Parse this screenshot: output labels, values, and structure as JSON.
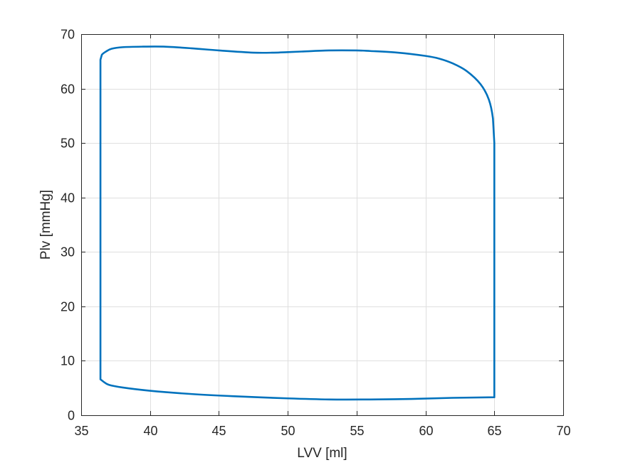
{
  "chart_data": {
    "type": "line",
    "title": "",
    "xlabel": "LVV [ml]",
    "ylabel": "Plv [mmHg]",
    "xlim": [
      35,
      70
    ],
    "ylim": [
      0,
      70
    ],
    "xticks": [
      35,
      40,
      45,
      50,
      55,
      60,
      65,
      70
    ],
    "yticks": [
      0,
      10,
      20,
      30,
      40,
      50,
      60,
      70
    ],
    "grid": true,
    "legend": "none",
    "series": [
      {
        "color": "#0072BD",
        "x": [
          65.0,
          64.9,
          64.6,
          64.0,
          63.0,
          62.0,
          61.0,
          60.0,
          58.0,
          56.0,
          55.0,
          53.0,
          51.0,
          50.0,
          49.0,
          47.5,
          45.0,
          43.0,
          41.0,
          39.5,
          38.0,
          37.2,
          36.8,
          36.5,
          36.4,
          36.4,
          36.4,
          36.6,
          37.0,
          38.0,
          40.0,
          43.0,
          46.0,
          50.0,
          53.0,
          56.0,
          59.0,
          62.0,
          65.0,
          65.0,
          65.0
        ],
        "y": [
          50.0,
          54.5,
          58.0,
          60.8,
          63.2,
          64.6,
          65.5,
          66.0,
          66.6,
          66.9,
          67.0,
          67.0,
          66.8,
          66.7,
          66.6,
          66.6,
          67.0,
          67.4,
          67.7,
          67.7,
          67.6,
          67.3,
          66.8,
          66.2,
          65.3,
          35.0,
          6.6,
          6.2,
          5.6,
          5.1,
          4.5,
          3.9,
          3.5,
          3.1,
          2.9,
          2.9,
          3.0,
          3.2,
          3.3,
          20.0,
          50.0
        ]
      }
    ]
  }
}
